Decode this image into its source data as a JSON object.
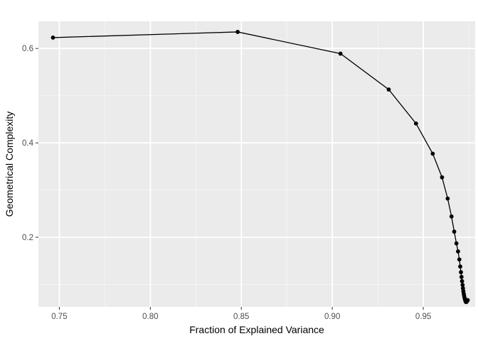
{
  "chart_data": {
    "type": "line",
    "title": "",
    "xlabel": "Fraction of Explained Variance",
    "ylabel": "Geometrical Complexity",
    "xlim": [
      0.7385,
      0.9785
    ],
    "ylim": [
      0.0525,
      0.6575
    ],
    "xticks": [
      0.75,
      0.8,
      0.85,
      0.9,
      0.95
    ],
    "xtick_labels": [
      "0.75",
      "0.80",
      "0.85",
      "0.90",
      "0.95"
    ],
    "yticks": [
      0.2,
      0.4,
      0.6
    ],
    "ytick_labels": [
      "0.2",
      "0.4",
      "0.6"
    ],
    "grid": true,
    "legend": "none",
    "series": [
      {
        "color": "#000000",
        "x": [
          0.7465,
          0.848,
          0.9045,
          0.931,
          0.946,
          0.9552,
          0.9603,
          0.9634,
          0.9655,
          0.967,
          0.9682,
          0.9691,
          0.9698,
          0.9703,
          0.9707,
          0.971,
          0.9713,
          0.9716,
          0.9718,
          0.972,
          0.9722,
          0.9724,
          0.9726,
          0.9728,
          0.973,
          0.9732,
          0.9734,
          0.9737,
          0.9741,
          0.9744
        ],
        "y": [
          0.623,
          0.635,
          0.589,
          0.513,
          0.441,
          0.377,
          0.327,
          0.282,
          0.244,
          0.212,
          0.187,
          0.17,
          0.153,
          0.138,
          0.126,
          0.116,
          0.107,
          0.099,
          0.092,
          0.086,
          0.081,
          0.077,
          0.073,
          0.07,
          0.067,
          0.065,
          0.063,
          0.063,
          0.065,
          0.067
        ]
      }
    ]
  }
}
